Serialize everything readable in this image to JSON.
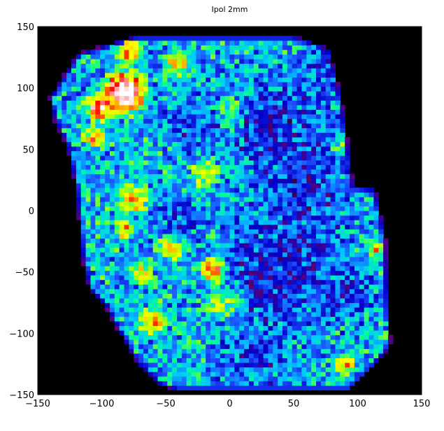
{
  "chart_data": {
    "type": "heatmap",
    "title": "Ipol  2mm",
    "xlabel": "",
    "ylabel": "",
    "xlim": [
      -150,
      150
    ],
    "ylim": [
      -150,
      150
    ],
    "xticks": [
      -150,
      -100,
      -50,
      0,
      50,
      100,
      150
    ],
    "yticks": [
      -150,
      -100,
      -50,
      0,
      50,
      100,
      150
    ],
    "xtick_labels": [
      "−150",
      "−100",
      "−50",
      "0",
      "50",
      "100",
      "150"
    ],
    "ytick_labels": [
      "−150",
      "−100",
      "−50",
      "0",
      "50",
      "100",
      "150"
    ],
    "grid": false,
    "background_color": "#000000",
    "colormap": [
      "#000000",
      "#5a0078",
      "#0000c8",
      "#1e50ff",
      "#00c8ff",
      "#00ff96",
      "#b4ff00",
      "#ffff00",
      "#ff8c00",
      "#ff0000",
      "#ffffff"
    ],
    "footprint_polygon": [
      [
        -73,
        143
      ],
      [
        50,
        143
      ],
      [
        78,
        132
      ],
      [
        88,
        88
      ],
      [
        97,
        20
      ],
      [
        114,
        18
      ],
      [
        122,
        -22
      ],
      [
        124,
        -72
      ],
      [
        126,
        -110
      ],
      [
        112,
        -128
      ],
      [
        93,
        -147
      ],
      [
        33,
        -147
      ],
      [
        -40,
        -147
      ],
      [
        -55,
        -142
      ],
      [
        -72,
        -125
      ],
      [
        -86,
        -100
      ],
      [
        -97,
        -78
      ],
      [
        -110,
        -64
      ],
      [
        -113,
        -50
      ],
      [
        -116,
        -35
      ],
      [
        -118,
        -10
      ],
      [
        -121,
        22
      ],
      [
        -128,
        55
      ],
      [
        -137,
        73
      ],
      [
        -141,
        92
      ],
      [
        -119,
        128
      ]
    ],
    "hotspots": [
      {
        "x": -82,
        "y": 97,
        "level": 1.0,
        "radius": 14
      },
      {
        "x": -100,
        "y": 85,
        "level": 0.8,
        "radius": 12
      },
      {
        "x": -78,
        "y": 130,
        "level": 0.72,
        "radius": 10
      },
      {
        "x": -105,
        "y": 60,
        "level": 0.68,
        "radius": 9
      },
      {
        "x": -12,
        "y": -48,
        "level": 0.95,
        "radius": 9
      },
      {
        "x": -5,
        "y": -75,
        "level": 0.62,
        "radius": 14
      },
      {
        "x": -45,
        "y": -30,
        "level": 0.58,
        "radius": 12
      },
      {
        "x": -75,
        "y": 10,
        "level": 0.62,
        "radius": 13
      },
      {
        "x": -60,
        "y": -90,
        "level": 0.62,
        "radius": 11
      },
      {
        "x": -70,
        "y": -50,
        "level": 0.6,
        "radius": 10
      },
      {
        "x": -20,
        "y": 30,
        "level": 0.58,
        "radius": 12
      },
      {
        "x": 0,
        "y": 80,
        "level": 0.52,
        "radius": 14
      },
      {
        "x": -40,
        "y": 120,
        "level": 0.56,
        "radius": 12
      },
      {
        "x": -82,
        "y": -15,
        "level": 0.64,
        "radius": 8
      },
      {
        "x": 90,
        "y": -125,
        "level": 0.62,
        "radius": 8
      },
      {
        "x": 113,
        "y": -30,
        "level": 0.62,
        "radius": 6
      },
      {
        "x": 85,
        "y": 50,
        "level": 0.5,
        "radius": 10
      }
    ],
    "coldspots": [
      {
        "x": 35,
        "y": 70,
        "level": 0.22,
        "radius": 24
      },
      {
        "x": 40,
        "y": -50,
        "level": 0.2,
        "radius": 30
      },
      {
        "x": 60,
        "y": 20,
        "level": 0.22,
        "radius": 24
      },
      {
        "x": -30,
        "y": 70,
        "level": 0.26,
        "radius": 14
      },
      {
        "x": -40,
        "y": -5,
        "level": 0.28,
        "radius": 12
      },
      {
        "x": 20,
        "y": -120,
        "level": 0.26,
        "radius": 18
      },
      {
        "x": 75,
        "y": 110,
        "level": 0.28,
        "radius": 14
      },
      {
        "x": 95,
        "y": -70,
        "level": 0.26,
        "radius": 12
      }
    ],
    "base_level": 0.4
  }
}
